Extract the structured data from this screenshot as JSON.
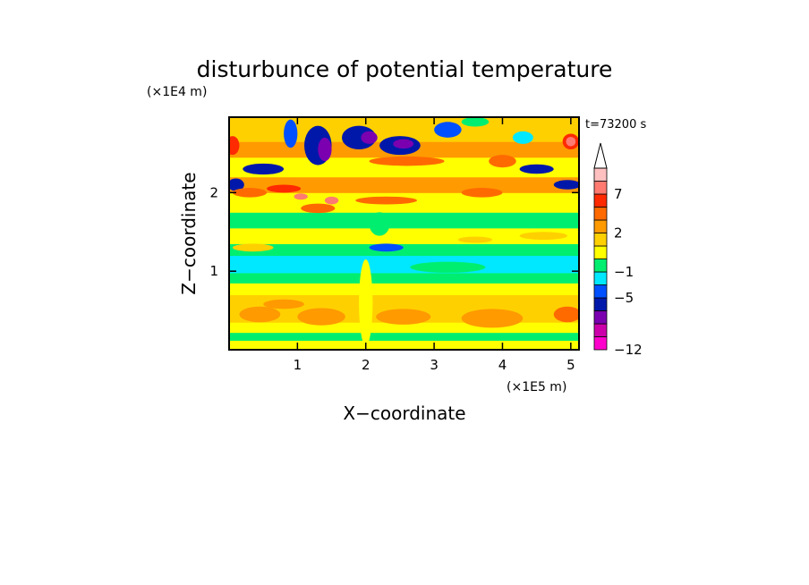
{
  "chart_data": {
    "type": "heatmap",
    "title": "disturbunce of potential temperature",
    "xlabel": "X−coordinate",
    "ylabel": "Z−coordinate",
    "x_scale_note": "(×1E5 m)",
    "y_scale_note": "(×1E4 m)",
    "time_label": "t=73200 s",
    "xlim": [
      0,
      5.12
    ],
    "ylim": [
      0,
      2.96
    ],
    "x_ticks": [
      1,
      2,
      3,
      4,
      5
    ],
    "y_ticks": [
      1,
      2
    ],
    "x_tick_labels": [
      "1",
      "2",
      "3",
      "4",
      "5"
    ],
    "y_tick_labels": [
      "1",
      "2"
    ],
    "colorbar": {
      "colors": [
        "#ff00cc",
        "#cc00aa",
        "#7a00b0",
        "#0018aa",
        "#0050ff",
        "#00e8ff",
        "#00ee70",
        "#ffff00",
        "#ffd000",
        "#ff9a00",
        "#ff6a00",
        "#ff2a00",
        "#ff7a70",
        "#ffc0c0"
      ],
      "labels": [
        {
          "level": 0,
          "text": "−12"
        },
        {
          "level": 4,
          "text": "−5"
        },
        {
          "level": 6,
          "text": "−1"
        },
        {
          "level": 9,
          "text": "2"
        },
        {
          "level": 12,
          "text": "7"
        }
      ],
      "extend_top": true
    },
    "bands": [
      {
        "z": [
          0.0,
          0.12
        ],
        "class": 7
      },
      {
        "z": [
          0.12,
          0.22
        ],
        "class": 6
      },
      {
        "z": [
          0.22,
          0.35
        ],
        "class": 7
      },
      {
        "z": [
          0.35,
          0.7
        ],
        "class": 8
      },
      {
        "z": [
          0.7,
          0.85
        ],
        "class": 7
      },
      {
        "z": [
          0.85,
          0.98
        ],
        "class": 6
      },
      {
        "z": [
          0.98,
          1.2
        ],
        "class": 5
      },
      {
        "z": [
          1.2,
          1.35
        ],
        "class": 6
      },
      {
        "z": [
          1.35,
          1.55
        ],
        "class": 7
      },
      {
        "z": [
          1.55,
          1.75
        ],
        "class": 6
      },
      {
        "z": [
          1.75,
          2.0
        ],
        "class": 7
      },
      {
        "z": [
          2.0,
          2.2
        ],
        "class": 9
      },
      {
        "z": [
          2.2,
          2.45
        ],
        "class": 7
      },
      {
        "z": [
          2.45,
          2.65
        ],
        "class": 9
      },
      {
        "z": [
          2.65,
          2.96
        ],
        "class": 8
      }
    ],
    "blobs": [
      {
        "x": 0.45,
        "z": 0.45,
        "rx": 0.3,
        "rz": 0.1,
        "class": 9
      },
      {
        "x": 1.35,
        "z": 0.42,
        "rx": 0.35,
        "rz": 0.11,
        "class": 9
      },
      {
        "x": 2.55,
        "z": 0.42,
        "rx": 0.4,
        "rz": 0.1,
        "class": 9
      },
      {
        "x": 3.85,
        "z": 0.4,
        "rx": 0.45,
        "rz": 0.12,
        "class": 9
      },
      {
        "x": 4.95,
        "z": 0.45,
        "rx": 0.2,
        "rz": 0.1,
        "class": 10
      },
      {
        "x": 0.8,
        "z": 0.58,
        "rx": 0.3,
        "rz": 0.06,
        "class": 9
      },
      {
        "x": 3.2,
        "z": 1.05,
        "rx": 0.55,
        "rz": 0.07,
        "class": 6
      },
      {
        "x": 4.6,
        "z": 1.45,
        "rx": 0.35,
        "rz": 0.05,
        "class": 8
      },
      {
        "x": 3.6,
        "z": 1.4,
        "rx": 0.25,
        "rz": 0.04,
        "class": 8
      },
      {
        "x": 0.35,
        "z": 1.3,
        "rx": 0.3,
        "rz": 0.05,
        "class": 8
      },
      {
        "x": 2.3,
        "z": 1.3,
        "rx": 0.25,
        "rz": 0.05,
        "class": 4
      },
      {
        "x": 0.1,
        "z": 2.1,
        "rx": 0.12,
        "rz": 0.08,
        "class": 3
      },
      {
        "x": 0.5,
        "z": 2.3,
        "rx": 0.3,
        "rz": 0.07,
        "class": 3
      },
      {
        "x": 0.3,
        "z": 2.0,
        "rx": 0.25,
        "rz": 0.06,
        "class": 10
      },
      {
        "x": 0.8,
        "z": 2.05,
        "rx": 0.25,
        "rz": 0.05,
        "class": 11
      },
      {
        "x": 1.3,
        "z": 1.8,
        "rx": 0.25,
        "rz": 0.06,
        "class": 10
      },
      {
        "x": 1.5,
        "z": 1.9,
        "rx": 0.1,
        "rz": 0.05,
        "class": 12
      },
      {
        "x": 1.05,
        "z": 1.95,
        "rx": 0.1,
        "rz": 0.04,
        "class": 12
      },
      {
        "x": 2.3,
        "z": 1.9,
        "rx": 0.45,
        "rz": 0.05,
        "class": 10
      },
      {
        "x": 2.6,
        "z": 2.4,
        "rx": 0.55,
        "rz": 0.06,
        "class": 10
      },
      {
        "x": 0.9,
        "z": 2.75,
        "rx": 0.1,
        "rz": 0.18,
        "class": 4
      },
      {
        "x": 1.3,
        "z": 2.6,
        "rx": 0.2,
        "rz": 0.25,
        "class": 3
      },
      {
        "x": 1.4,
        "z": 2.55,
        "rx": 0.1,
        "rz": 0.15,
        "class": 2
      },
      {
        "x": 1.9,
        "z": 2.7,
        "rx": 0.25,
        "rz": 0.15,
        "class": 3
      },
      {
        "x": 2.05,
        "z": 2.7,
        "rx": 0.12,
        "rz": 0.08,
        "class": 2
      },
      {
        "x": 2.5,
        "z": 2.6,
        "rx": 0.3,
        "rz": 0.12,
        "class": 3
      },
      {
        "x": 2.55,
        "z": 2.62,
        "rx": 0.15,
        "rz": 0.06,
        "class": 2
      },
      {
        "x": 3.2,
        "z": 2.8,
        "rx": 0.2,
        "rz": 0.1,
        "class": 4
      },
      {
        "x": 3.6,
        "z": 2.9,
        "rx": 0.2,
        "rz": 0.06,
        "class": 6
      },
      {
        "x": 4.3,
        "z": 2.7,
        "rx": 0.15,
        "rz": 0.08,
        "class": 5
      },
      {
        "x": 4.5,
        "z": 2.3,
        "rx": 0.25,
        "rz": 0.06,
        "class": 3
      },
      {
        "x": 4.95,
        "z": 2.1,
        "rx": 0.2,
        "rz": 0.06,
        "class": 3
      },
      {
        "x": 5.0,
        "z": 2.65,
        "rx": 0.12,
        "rz": 0.1,
        "class": 11
      },
      {
        "x": 5.0,
        "z": 2.65,
        "rx": 0.07,
        "rz": 0.06,
        "class": 12
      },
      {
        "x": 4.0,
        "z": 2.4,
        "rx": 0.2,
        "rz": 0.08,
        "class": 10
      },
      {
        "x": 3.7,
        "z": 2.0,
        "rx": 0.3,
        "rz": 0.06,
        "class": 10
      },
      {
        "x": 0.05,
        "z": 2.6,
        "rx": 0.1,
        "rz": 0.12,
        "class": 11
      },
      {
        "x": 2.2,
        "z": 1.6,
        "rx": 0.15,
        "rz": 0.15,
        "class": 6
      },
      {
        "x": 2.0,
        "z": 0.6,
        "rx": 0.1,
        "rz": 0.55,
        "class": 7
      }
    ]
  }
}
